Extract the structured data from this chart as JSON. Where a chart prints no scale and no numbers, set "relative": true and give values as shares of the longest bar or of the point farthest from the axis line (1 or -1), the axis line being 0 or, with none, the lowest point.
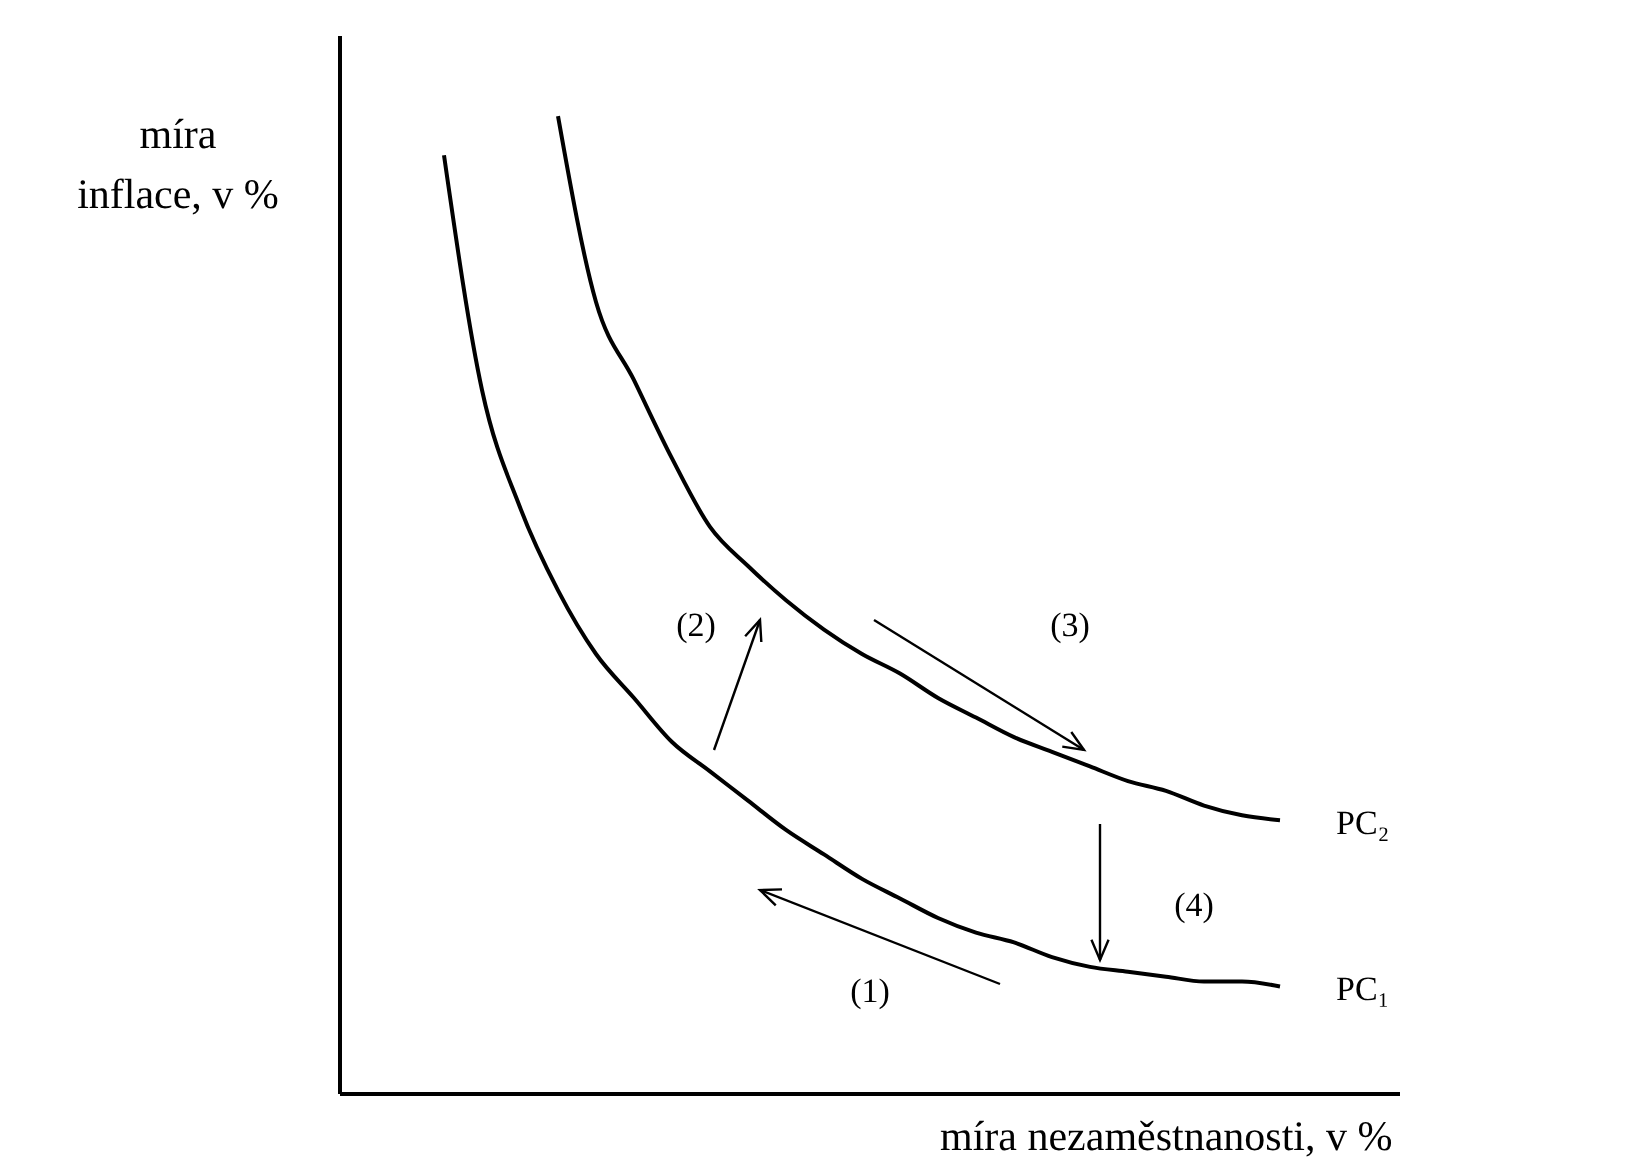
{
  "chart_data": {
    "type": "line",
    "relative": true,
    "xlabel": "míra nezaměstnanosti, v %",
    "ylabel": "míra inflace, v %",
    "categories": [
      null,
      null,
      null,
      null,
      null,
      null,
      null,
      null,
      null,
      null,
      null,
      null,
      null,
      null,
      null,
      null,
      null,
      null,
      null,
      null,
      null,
      null,
      null
    ],
    "series": [
      {
        "name": "PC₁",
        "color": "#000000",
        "values": [
          0.96,
          0.72,
          0.6,
          0.515,
          0.45,
          0.405,
          0.36,
          0.33,
          0.3,
          0.27,
          0.245,
          0.22,
          0.2,
          0.18,
          0.165,
          0.155,
          0.14,
          0.13,
          0.125,
          0.12,
          0.115,
          0.115,
          0.11
        ]
      },
      {
        "name": "PC₂",
        "color": "#000000",
        "values": [
          null,
          null,
          null,
          1.0,
          0.81,
          0.73,
          0.65,
          0.58,
          0.54,
          0.505,
          0.475,
          0.45,
          0.43,
          0.405,
          0.385,
          0.365,
          0.35,
          0.335,
          0.32,
          0.31,
          0.295,
          0.285,
          0.28
        ]
      }
    ],
    "annotations": [
      "(1)",
      "(2)",
      "(3)",
      "(4)"
    ],
    "marker": "none",
    "line_style": "solid",
    "grid": false,
    "legend": false
  }
}
